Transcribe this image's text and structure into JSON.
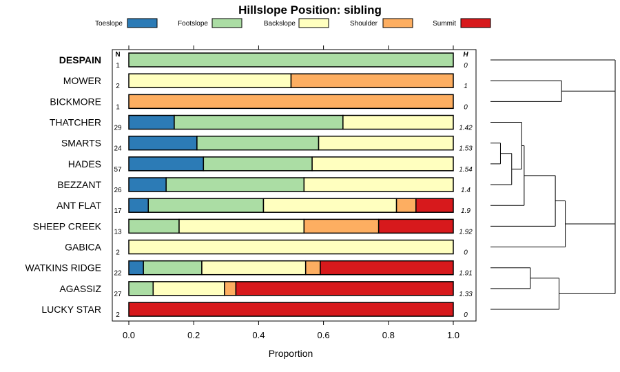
{
  "chart_data": {
    "type": "bar",
    "orientation": "horizontal",
    "stacked": true,
    "title": "Hillslope Position: sibling",
    "xlabel": "Proportion",
    "xlim": [
      0,
      1
    ],
    "x_ticks": [
      "0.0",
      "0.2",
      "0.4",
      "0.6",
      "0.8",
      "1.0"
    ],
    "n_header": "N",
    "h_header": "H",
    "legend_position": "top",
    "series": [
      {
        "name": "Toeslope",
        "color": "#2C7BB6"
      },
      {
        "name": "Footslope",
        "color": "#ABDDA4"
      },
      {
        "name": "Backslope",
        "color": "#FFFFBF"
      },
      {
        "name": "Shoulder",
        "color": "#FDAE61"
      },
      {
        "name": "Summit",
        "color": "#D7191C"
      }
    ],
    "categories": [
      {
        "label": "DESPAIN",
        "bold": true,
        "n": "1",
        "h": "0",
        "values": [
          0,
          1.0,
          0,
          0,
          0
        ]
      },
      {
        "label": "MOWER",
        "n": "2",
        "h": "1",
        "values": [
          0,
          0,
          0.5,
          0.5,
          0
        ]
      },
      {
        "label": "BICKMORE",
        "n": "1",
        "h": "0",
        "values": [
          0,
          0,
          0,
          1.0,
          0
        ]
      },
      {
        "label": "THATCHER",
        "n": "29",
        "h": "1.42",
        "values": [
          0.14,
          0.52,
          0.34,
          0,
          0
        ]
      },
      {
        "label": "SMARTS",
        "n": "24",
        "h": "1.53",
        "values": [
          0.21,
          0.375,
          0.415,
          0,
          0
        ]
      },
      {
        "label": "HADES",
        "n": "57",
        "h": "1.54",
        "values": [
          0.23,
          0.335,
          0.435,
          0,
          0
        ]
      },
      {
        "label": "BEZZANT",
        "n": "26",
        "h": "1.4",
        "values": [
          0.115,
          0.425,
          0.46,
          0,
          0
        ]
      },
      {
        "label": "ANT FLAT",
        "n": "17",
        "h": "1.9",
        "values": [
          0.06,
          0.355,
          0.41,
          0.06,
          0.115
        ]
      },
      {
        "label": "SHEEP CREEK",
        "n": "13",
        "h": "1.92",
        "values": [
          0,
          0.155,
          0.385,
          0.23,
          0.23
        ]
      },
      {
        "label": "GABICA",
        "n": "2",
        "h": "0",
        "values": [
          0,
          0,
          1.0,
          0,
          0
        ]
      },
      {
        "label": "WATKINS RIDGE",
        "n": "22",
        "h": "1.91",
        "values": [
          0.045,
          0.18,
          0.32,
          0.045,
          0.41
        ]
      },
      {
        "label": "AGASSIZ",
        "n": "27",
        "h": "1.33",
        "values": [
          0,
          0.075,
          0.22,
          0.035,
          0.67
        ]
      },
      {
        "label": "LUCKY STAR",
        "n": "2",
        "h": "0",
        "values": [
          0,
          0,
          0,
          0,
          1.0
        ]
      }
    ],
    "dendrogram": {
      "leaf_order": [
        "DESPAIN",
        "MOWER",
        "BICKMORE",
        "THATCHER",
        "SMARTS",
        "HADES",
        "BEZZANT",
        "ANT FLAT",
        "SHEEP CREEK",
        "GABICA",
        "WATKINS RIDGE",
        "AGASSIZ",
        "LUCKY STAR"
      ],
      "merges": [
        {
          "id": "m1",
          "left": "SMARTS",
          "right": "HADES",
          "height": 0.08
        },
        {
          "id": "m2",
          "left": "m1",
          "right": "BEZZANT",
          "height": 0.17
        },
        {
          "id": "m3",
          "left": "THATCHER",
          "right": "m2",
          "height": 0.25
        },
        {
          "id": "m4",
          "left": "m3",
          "right": "ANT FLAT",
          "height": 0.27
        },
        {
          "id": "m5",
          "left": "m4",
          "right": "SHEEP CREEK",
          "height": 0.52
        },
        {
          "id": "m6",
          "left": "MOWER",
          "right": "BICKMORE",
          "height": 0.57
        },
        {
          "id": "m7",
          "left": "m5",
          "right": "GABICA",
          "height": 0.6
        },
        {
          "id": "m8",
          "left": "WATKINS RIDGE",
          "right": "AGASSIZ",
          "height": 0.32
        },
        {
          "id": "m9",
          "left": "m8",
          "right": "LUCKY STAR",
          "height": 0.55
        },
        {
          "id": "m10",
          "left": "m7",
          "right": "m9",
          "height": 1.0
        },
        {
          "id": "m11",
          "left": "DESPAIN",
          "right": "m6",
          "height": 1.0
        },
        {
          "id": "m12",
          "left": "m11",
          "right": "m10",
          "height": 1.0
        }
      ]
    }
  }
}
